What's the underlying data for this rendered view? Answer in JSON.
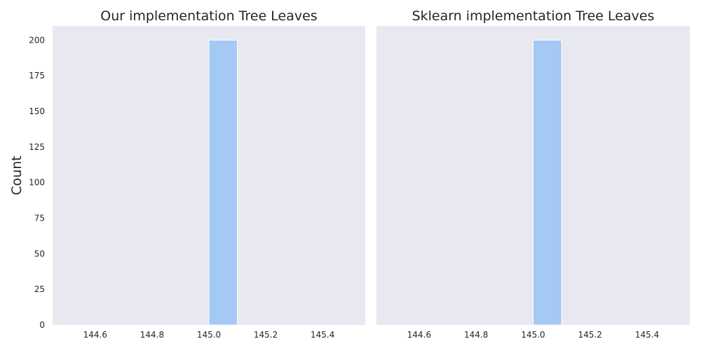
{
  "figure": {
    "background": "#ffffff",
    "axes_background": "#e8e8f1",
    "bar_color": "#a4c9f4",
    "bar_edge": "#ffffff",
    "text_color": "#262626"
  },
  "chart_data": [
    {
      "type": "bar",
      "title": "Our implementation Tree Leaves",
      "xlabel": "",
      "ylabel": "Count",
      "xlim": [
        144.45,
        145.55
      ],
      "ylim": [
        0,
        210
      ],
      "xticks": [
        "144.6",
        "144.8",
        "145.0",
        "145.2",
        "145.4"
      ],
      "xtick_values": [
        144.6,
        144.8,
        145.0,
        145.2,
        145.4
      ],
      "yticks": [
        "0",
        "25",
        "50",
        "75",
        "100",
        "125",
        "150",
        "175",
        "200"
      ],
      "ytick_values": [
        0,
        25,
        50,
        75,
        100,
        125,
        150,
        175,
        200
      ],
      "bins": [
        {
          "x0": 145.0,
          "x1": 145.1,
          "count": 200
        }
      ],
      "grid": false,
      "legend": "none"
    },
    {
      "type": "bar",
      "title": "Sklearn implementation Tree Leaves",
      "xlabel": "",
      "ylabel": "",
      "xlim": [
        144.45,
        145.55
      ],
      "ylim": [
        0,
        210
      ],
      "xticks": [
        "144.6",
        "144.8",
        "145.0",
        "145.2",
        "145.4"
      ],
      "xtick_values": [
        144.6,
        144.8,
        145.0,
        145.2,
        145.4
      ],
      "yticks": [],
      "ytick_values": [],
      "bins": [
        {
          "x0": 145.0,
          "x1": 145.1,
          "count": 200
        }
      ],
      "grid": false,
      "legend": "none",
      "shared_y": true
    }
  ]
}
